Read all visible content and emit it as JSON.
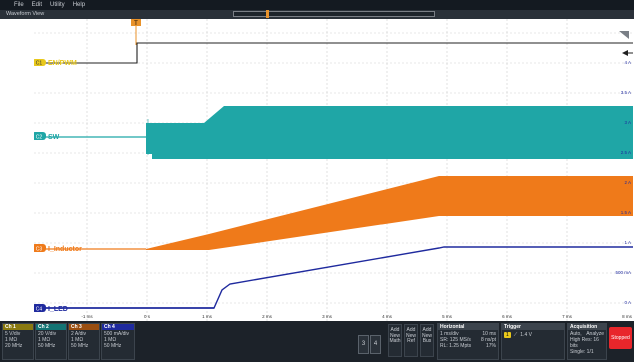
{
  "menu": [
    "File",
    "Edit",
    "Utility",
    "Help"
  ],
  "window_title": "Waveform View",
  "trigger_marker": "T",
  "colors": {
    "ch1": "#e8c81c",
    "ch2": "#1fa6a6",
    "ch3": "#ef7a1a",
    "ch4": "#1f2a9e",
    "trace_black": "#202020",
    "stop": "#e8262b"
  },
  "channels": [
    {
      "id": "C1",
      "name": "EN/PWM"
    },
    {
      "id": "C2",
      "name": "SW"
    },
    {
      "id": "C3",
      "name": "I_Inductor"
    },
    {
      "id": "C4",
      "name": "I_LED"
    }
  ],
  "time_axis": [
    "-1 ms",
    "0 s",
    "1 ms",
    "2 ms",
    "3 ms",
    "4 ms",
    "5 ms",
    "6 ms",
    "7 ms",
    "8 ms"
  ],
  "right_axis": [
    "4 A",
    "3.5 A",
    "3 A",
    "2.5 A",
    "2 A",
    "1.5 A",
    "1 A",
    "500 mA",
    "0 A"
  ],
  "footer": {
    "ch1": {
      "title": "Ch 1",
      "lines": [
        "5 V/div",
        "1 MΩ",
        "20 MHz"
      ]
    },
    "ch2": {
      "title": "Ch 2",
      "lines": [
        "20 V/div",
        "1 MΩ",
        "50 MHz"
      ]
    },
    "ch3": {
      "title": "Ch 3",
      "lines": [
        "2 A/div",
        "1 MΩ",
        "50 MHz"
      ]
    },
    "ch4": {
      "title": "Ch 4",
      "lines": [
        "500 mA/div",
        "1 MΩ",
        "50 MHz"
      ]
    },
    "btn3": "3",
    "btn4": "4",
    "add_math": "Add New Math",
    "add_ref": "Add New Ref",
    "add_bus": "Add New Bus",
    "horizontal": {
      "title": "Horizontal",
      "lines": [
        "1 ms/div",
        "SR: 125 MS/s",
        "RL: 1.25 Mpts"
      ],
      "right": [
        "10 ms",
        "8 ns/pt",
        "17%"
      ]
    },
    "trigger": {
      "title": "Trigger",
      "src": "1",
      "level": "1.4 V"
    },
    "acquisition": {
      "title": "Acquisition",
      "lines": [
        "Auto,",
        "High Res: 16 bits",
        "Single: 1/1"
      ],
      "right": "Analyze"
    },
    "stop": "Stopped"
  }
}
